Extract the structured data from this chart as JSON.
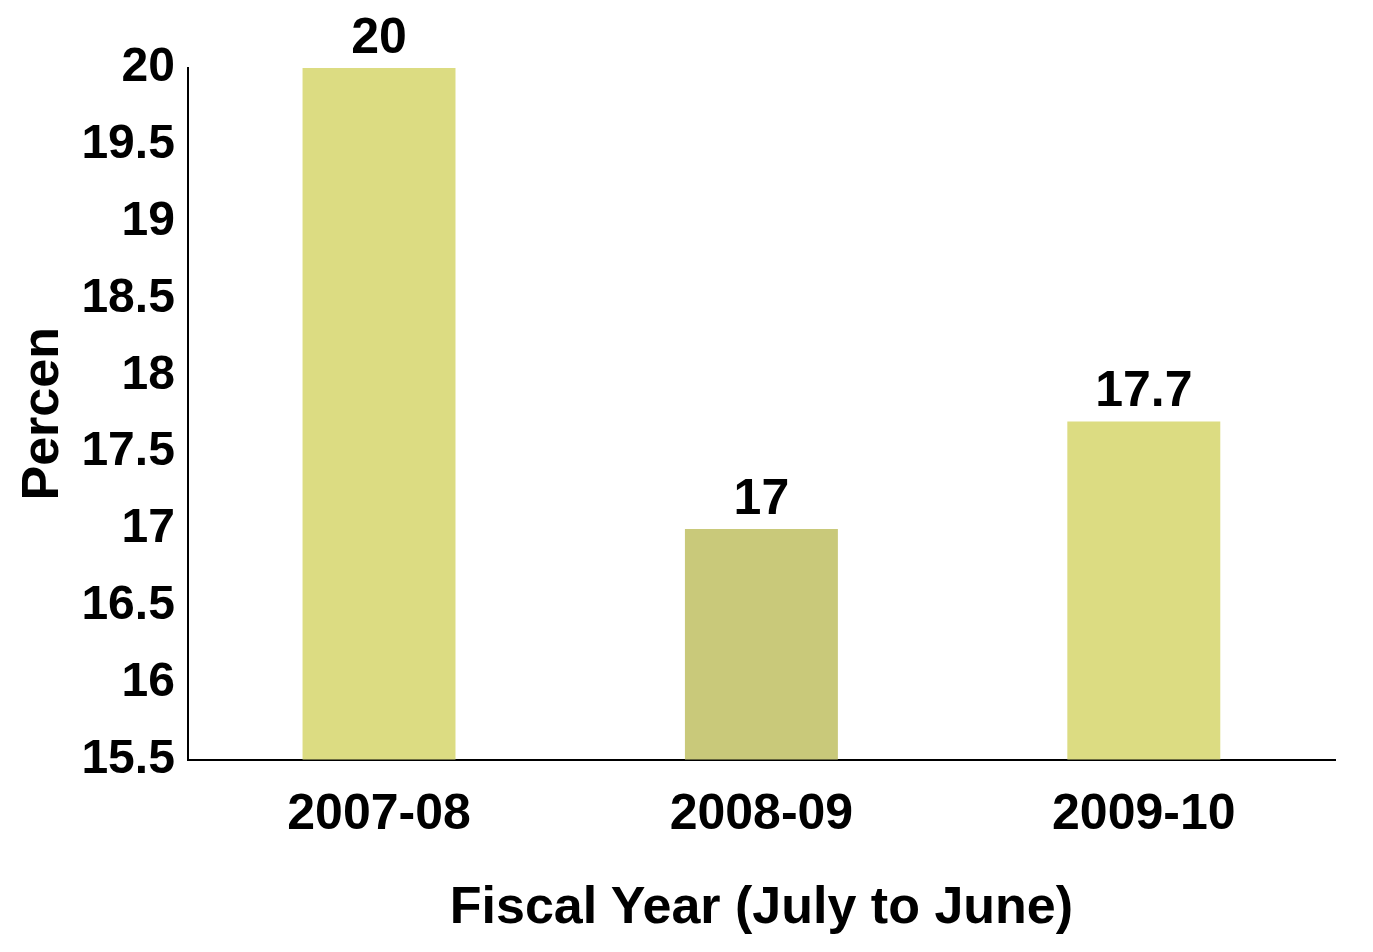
{
  "chart_data": {
    "type": "bar",
    "xlabel": "Fiscal Year (July to June)",
    "ylabel": "Percen",
    "categories": [
      "2007-08",
      "2008-09",
      "2009-10"
    ],
    "values": [
      20,
      17,
      17.7
    ],
    "colors": [
      "#dcdc82",
      "#c9c97a",
      "#dcdc82"
    ],
    "ylim": [
      15.5,
      20
    ],
    "yticks": [
      15.5,
      16,
      16.5,
      17,
      17.5,
      18,
      18.5,
      19,
      19.5,
      20
    ],
    "data_labels": true,
    "grid": false,
    "legend": false
  }
}
